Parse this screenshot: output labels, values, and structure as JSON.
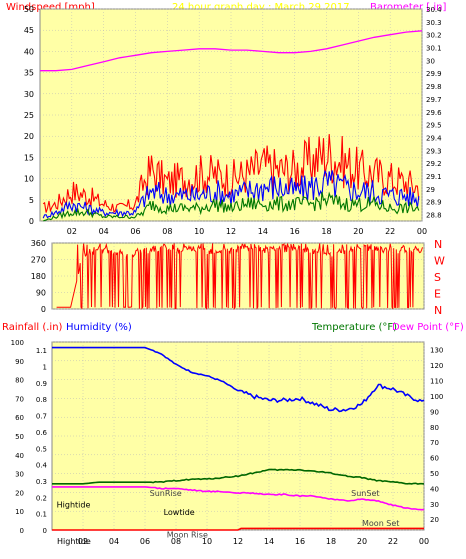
{
  "header": {
    "title": "24 hour graph day : March 29 2017",
    "left_label": "Windspeed [mph]",
    "right_label": "Barometer [.in]"
  },
  "colors": {
    "plot_bg": "#FFFFA6",
    "frame_bg": "#ffffff",
    "grid": "#B8B8B8",
    "red": "#FF0000",
    "blue": "#0000FF",
    "green": "#007700",
    "magenta": "#FF00FF",
    "dark_green": "#006600",
    "tick_text": "#000000"
  },
  "chart_data": [
    {
      "type": "line",
      "name": "wind-barometer",
      "title": "24 hour graph day : March 29 2017",
      "ylabel_left": "Windspeed [mph]",
      "ylabel_right": "Barometer [.in]",
      "x_ticks": [
        "02",
        "04",
        "06",
        "08",
        "10",
        "12",
        "14",
        "16",
        "18",
        "20",
        "22",
        "00"
      ],
      "x_range": [
        0,
        24
      ],
      "y_left_range": [
        0,
        50
      ],
      "y_left_ticks": [
        0,
        5,
        10,
        15,
        20,
        25,
        30,
        35,
        40,
        45,
        50
      ],
      "y_right_range": [
        28.75,
        30.4
      ],
      "y_right_ticks": [
        "28.8",
        "28.9",
        "29",
        "29.1",
        "29.2",
        "29.3",
        "29.4",
        "29.5",
        "29.6",
        "29.7",
        "29.8",
        "29.9",
        "30",
        "30.1",
        "30.2",
        "30.3",
        "30.4"
      ],
      "grid": true,
      "series": [
        {
          "key": "gust",
          "color": "#FF0000",
          "axis": "left",
          "x": [
            0.2,
            1,
            2,
            3,
            4,
            5,
            6,
            6.5,
            7,
            8,
            9,
            10,
            11,
            12,
            13,
            14,
            15,
            16,
            17,
            18,
            19,
            20,
            21,
            22,
            23,
            23.8
          ],
          "y": [
            3,
            4,
            7,
            6,
            4,
            3,
            4,
            9,
            12,
            9,
            10,
            11,
            11,
            10,
            11,
            13,
            12,
            12,
            14,
            16,
            14,
            12,
            11,
            10,
            9,
            8
          ]
        },
        {
          "key": "average",
          "color": "#0000FF",
          "axis": "left",
          "x": [
            0.2,
            1,
            2,
            3,
            4,
            5,
            6,
            6.5,
            7,
            8,
            9,
            10,
            11,
            12,
            13,
            14,
            15,
            16,
            17,
            18,
            19,
            20,
            21,
            22,
            23,
            23.8
          ],
          "y": [
            1,
            2,
            4,
            3,
            2,
            2,
            2,
            5,
            7,
            6,
            6,
            6,
            7,
            6,
            7,
            8,
            8,
            7,
            8,
            9,
            8,
            7,
            7,
            6,
            6,
            5
          ]
        },
        {
          "key": "lull",
          "color": "#007700",
          "axis": "left",
          "x": [
            0.2,
            1,
            2,
            3,
            4,
            5,
            6,
            6.5,
            7,
            8,
            9,
            10,
            11,
            12,
            13,
            14,
            15,
            16,
            17,
            18,
            19,
            20,
            21,
            22,
            23,
            23.8
          ],
          "y": [
            0,
            1,
            2,
            2,
            1,
            1,
            1,
            2,
            4,
            3,
            3,
            3,
            4,
            3,
            4,
            4,
            4,
            4,
            4,
            5,
            4,
            4,
            4,
            3,
            3,
            3
          ]
        },
        {
          "key": "barometer",
          "color": "#FF00FF",
          "axis": "right",
          "x": [
            0,
            1,
            2,
            3,
            4,
            5,
            6,
            7,
            8,
            9,
            10,
            11,
            12,
            13,
            14,
            15,
            16,
            17,
            18,
            19,
            20,
            21,
            22,
            23,
            24
          ],
          "y": [
            29.92,
            29.92,
            29.93,
            29.96,
            29.99,
            30.02,
            30.04,
            30.06,
            30.07,
            30.08,
            30.09,
            30.09,
            30.08,
            30.08,
            30.07,
            30.06,
            30.06,
            30.07,
            30.09,
            30.12,
            30.15,
            30.18,
            30.2,
            30.22,
            30.23
          ]
        }
      ]
    },
    {
      "type": "line",
      "name": "wind-direction",
      "y_range": [
        0,
        360
      ],
      "y_ticks": [
        0,
        90,
        180,
        270,
        360
      ],
      "right_labels": [
        "N",
        "W",
        "S",
        "E",
        "N"
      ],
      "grid": true,
      "series": [
        {
          "key": "direction",
          "color": "#FF0000",
          "x": [
            0.3,
            1.2,
            2,
            3,
            4,
            5,
            6,
            7,
            8,
            9,
            10,
            11,
            12,
            13,
            14,
            15,
            16,
            17,
            18,
            19,
            20,
            21,
            22,
            23,
            23.9
          ],
          "y": [
            10,
            10,
            300,
            330,
            310,
            300,
            320,
            330,
            320,
            330,
            320,
            320,
            330,
            340,
            320,
            330,
            330,
            320,
            300,
            320,
            340,
            330,
            320,
            330,
            320
          ]
        }
      ]
    },
    {
      "type": "line",
      "name": "rain-humidity-temperature",
      "ylabel_left_1": "Rainfall (.in)",
      "ylabel_left_2": "Humidity (%)",
      "ylabel_right_1": "Temperature (°F)",
      "ylabel_right_2": "Dew Point (°F)",
      "x_ticks": [
        "02",
        "04",
        "06",
        "08",
        "10",
        "12",
        "14",
        "16",
        "18",
        "20",
        "22",
        "00"
      ],
      "x_ticks_bottom_extra": "Hightide",
      "humidity_range": [
        0,
        100
      ],
      "humidity_ticks": [
        0,
        10,
        20,
        30,
        40,
        50,
        60,
        70,
        80,
        90,
        100
      ],
      "rain_range": [
        0,
        1.15
      ],
      "rain_ticks": [
        "0",
        "0.1",
        "0.2",
        "0.3",
        "0.4",
        "0.5",
        "0.6",
        "0.7",
        "0.8",
        "0.9",
        "1",
        "1.1"
      ],
      "temp_range": [
        13,
        135
      ],
      "temp_ticks": [
        20,
        30,
        40,
        50,
        60,
        70,
        80,
        90,
        100,
        110,
        120,
        130
      ],
      "annotations": [
        {
          "text": "Hightide",
          "x": 0.3,
          "y": 12,
          "color": "#000000"
        },
        {
          "text": "SunRise",
          "x": 6.3,
          "y": 18,
          "color": "#444444"
        },
        {
          "text": "Lowtide",
          "x": 7.2,
          "y": 8,
          "color": "#000000"
        },
        {
          "text": "Moon Rise",
          "x": 7.4,
          "y": -4,
          "color": "#444444"
        },
        {
          "text": "SunSet",
          "x": 19.3,
          "y": 18,
          "color": "#444444"
        },
        {
          "text": "Moon Set",
          "x": 20,
          "y": 2,
          "color": "#444444"
        }
      ],
      "grid": true,
      "series": [
        {
          "key": "humidity",
          "color": "#0000FF",
          "axis": "humidity",
          "x": [
            0,
            1,
            2,
            3,
            4,
            5,
            6,
            7,
            8,
            9,
            10,
            11,
            12,
            13,
            14,
            15,
            16,
            17,
            18,
            19,
            20,
            21,
            22,
            23,
            24
          ],
          "y": [
            97,
            97,
            97,
            97,
            97,
            97,
            97,
            94,
            88,
            84,
            82,
            79,
            74,
            71,
            69,
            69,
            70,
            67,
            64,
            64,
            67,
            77,
            75,
            71,
            68
          ]
        },
        {
          "key": "temperature",
          "color": "#006600",
          "axis": "temp",
          "x": [
            0,
            1,
            2,
            3,
            4,
            5,
            6,
            7,
            8,
            9,
            10,
            11,
            12,
            13,
            14,
            15,
            16,
            17,
            18,
            19,
            20,
            21,
            22,
            23,
            24
          ],
          "y": [
            43,
            43,
            43,
            44,
            44,
            44,
            44,
            44,
            45,
            46,
            46,
            47,
            48,
            50,
            52,
            52,
            52,
            51,
            50,
            48,
            47,
            45,
            44,
            43,
            43
          ]
        },
        {
          "key": "dew_point",
          "color": "#FF00FF",
          "axis": "temp",
          "x": [
            0,
            1,
            2,
            3,
            4,
            5,
            6,
            7,
            8,
            9,
            10,
            11,
            12,
            13,
            14,
            15,
            16,
            17,
            18,
            19,
            20,
            21,
            22,
            23,
            24
          ],
          "y": [
            41,
            41,
            41,
            41,
            41,
            41,
            41,
            40,
            40,
            39,
            38,
            38,
            37,
            37,
            36,
            36,
            35,
            35,
            33,
            32,
            33,
            32,
            29,
            27,
            26
          ]
        },
        {
          "key": "rainfall",
          "color": "#FF0000",
          "axis": "rain",
          "x": [
            0,
            12,
            12.2,
            24
          ],
          "y": [
            0,
            0,
            0.01,
            0.01
          ]
        }
      ]
    }
  ]
}
